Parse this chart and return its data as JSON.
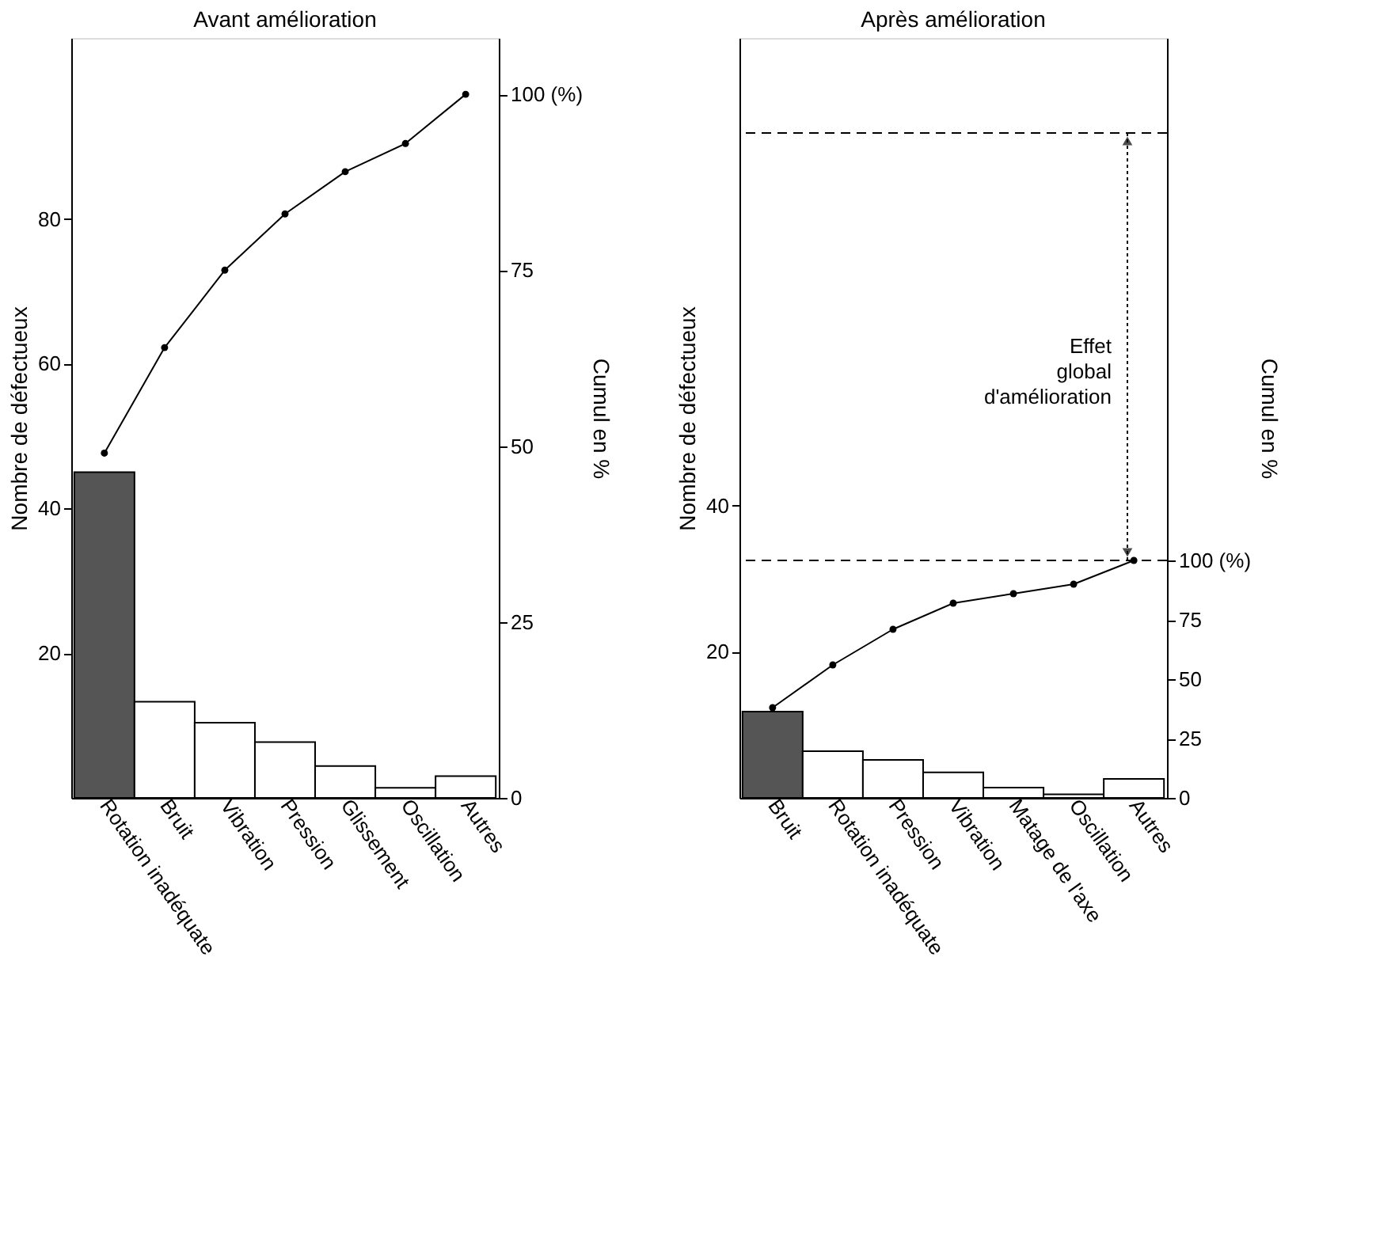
{
  "chart_data": [
    {
      "type": "bar",
      "title": "Avant amélioration",
      "categories": [
        "Rotation inadéquate",
        "Bruit",
        "Vibration",
        "Pression",
        "Glissement",
        "Oscillation",
        "Autres"
      ],
      "series": [
        {
          "type": "bar",
          "values": [
            45,
            13.3,
            10.4,
            7.7,
            4.4,
            1.4,
            3.0
          ],
          "colors": [
            "#555555",
            "#ffffff",
            "#ffffff",
            "#ffffff",
            "#ffffff",
            "#ffffff",
            "#ffffff"
          ]
        },
        {
          "type": "line",
          "axis": "y2",
          "color": "#000000",
          "values": [
            49,
            64,
            75,
            83,
            89,
            93,
            100
          ]
        }
      ],
      "ylabel": "Nombre de défectueux",
      "y2label": "Cumul en %",
      "ylim": [
        0,
        105
      ],
      "yticks": [
        20,
        40,
        60,
        80
      ],
      "y2lim": [
        0,
        108
      ],
      "y2ticks": [
        0,
        25,
        50,
        75,
        {
          "value": 100,
          "label": "100 (%)"
        }
      ],
      "marker": "circle",
      "grid": false
    },
    {
      "type": "bar",
      "title": "Après amélioration",
      "categories": [
        "Bruit",
        "Rotation inadéquate",
        "Pression",
        "Vibration",
        "Matage de l'axe",
        "Oscillation",
        "Autres"
      ],
      "series": [
        {
          "type": "bar",
          "values": [
            11.8,
            6.4,
            5.2,
            3.5,
            1.4,
            0.5,
            2.6
          ],
          "colors": [
            "#555555",
            "#ffffff",
            "#ffffff",
            "#ffffff",
            "#ffffff",
            "#ffffff",
            "#ffffff"
          ]
        },
        {
          "type": "line",
          "axis": "y2",
          "color": "#000000",
          "values": [
            38,
            56,
            71,
            82,
            86,
            90,
            100
          ]
        }
      ],
      "ylabel": "Nombre de défectueux",
      "y2label": "Cumul en %",
      "ylim": [
        0,
        104
      ],
      "yticks": [
        20,
        40
      ],
      "y2lim": [
        0,
        320
      ],
      "y2ticks": [
        0,
        25,
        50,
        75,
        {
          "value": 100,
          "label": "100 (%)"
        }
      ],
      "marker": "circle",
      "grid": false,
      "ref_lines": [
        {
          "axis": "y",
          "value": 91,
          "line_style": "dashed"
        },
        {
          "axis": "y2",
          "value": 100,
          "line_style": "dashed"
        }
      ],
      "annotations": [
        "Effet global d'amélioration"
      ]
    }
  ]
}
